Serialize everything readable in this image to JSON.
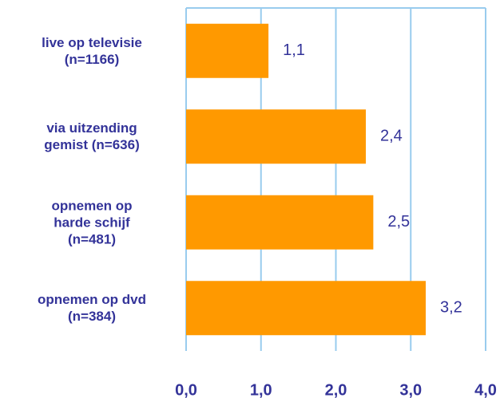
{
  "chart_data": {
    "type": "bar",
    "orientation": "horizontal",
    "categories": [
      "live op televisie\n(n=1166)",
      "via uitzending\ngemist (n=636)",
      "opnemen op\nharde schijf\n(n=481)",
      "opnemen op dvd\n(n=384)"
    ],
    "values": [
      1.1,
      2.4,
      2.5,
      3.2
    ],
    "value_labels": [
      "1,1",
      "2,4",
      "2,5",
      "3,2"
    ],
    "color": "#ff9900",
    "xlim": [
      0,
      4
    ],
    "xticks": [
      {
        "value": 0,
        "label": "0,0"
      },
      {
        "value": 1,
        "label": "1,0"
      },
      {
        "value": 2,
        "label": "2,0"
      },
      {
        "value": 3,
        "label": "3,0"
      },
      {
        "value": 4,
        "label": "4,0"
      }
    ],
    "grid": true
  }
}
